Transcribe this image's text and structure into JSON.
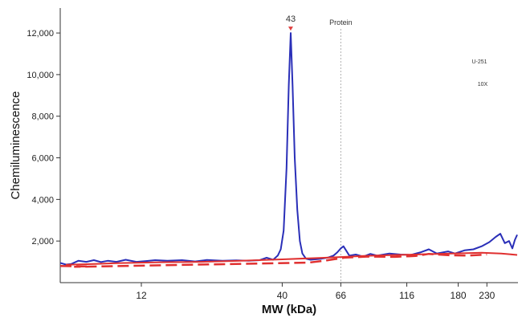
{
  "chart_data": {
    "type": "line",
    "xlabel": "MW (kDa)",
    "ylabel": "Chemiluminescence",
    "x_scale": "log",
    "x_ticks": [
      12,
      40,
      66,
      116,
      180,
      230
    ],
    "x_range": [
      6,
      300
    ],
    "y_ticks": [
      2000,
      4000,
      6000,
      8000,
      10000,
      12000
    ],
    "y_tick_labels": [
      "2,000",
      "4,000",
      "6,000",
      "8,000",
      "10,000",
      "12,000"
    ],
    "ylim": [
      0,
      13200
    ],
    "grid": false,
    "peak": {
      "label": "43",
      "x": 43,
      "y": 12000
    },
    "reference_line": {
      "label": "Protein",
      "x": 66
    },
    "annotations": [
      "U-251",
      "10X"
    ],
    "series": [
      {
        "color": "#2a2fb8",
        "style": "solid",
        "points": [
          [
            6.0,
            950
          ],
          [
            6.3,
            870
          ],
          [
            6.6,
            900
          ],
          [
            7.0,
            1050
          ],
          [
            7.5,
            1000
          ],
          [
            8.0,
            1080
          ],
          [
            8.5,
            990
          ],
          [
            9.0,
            1050
          ],
          [
            9.7,
            1000
          ],
          [
            10.5,
            1100
          ],
          [
            11.5,
            1000
          ],
          [
            12.5,
            1040
          ],
          [
            13.5,
            1080
          ],
          [
            15,
            1050
          ],
          [
            17,
            1080
          ],
          [
            19,
            1020
          ],
          [
            21,
            1090
          ],
          [
            24,
            1050
          ],
          [
            27,
            1070
          ],
          [
            30,
            1050
          ],
          [
            33,
            1080
          ],
          [
            35,
            1200
          ],
          [
            37,
            1100
          ],
          [
            38.5,
            1300
          ],
          [
            39.5,
            1600
          ],
          [
            40.5,
            2500
          ],
          [
            41.5,
            5500
          ],
          [
            42.3,
            9500
          ],
          [
            43,
            12000
          ],
          [
            43.7,
            9500
          ],
          [
            44.5,
            6000
          ],
          [
            45.5,
            3500
          ],
          [
            46.5,
            2000
          ],
          [
            47.5,
            1400
          ],
          [
            49,
            1150
          ],
          [
            51,
            1100
          ],
          [
            53,
            1120
          ],
          [
            56,
            1150
          ],
          [
            59,
            1200
          ],
          [
            62,
            1300
          ],
          [
            64,
            1450
          ],
          [
            66,
            1650
          ],
          [
            67.5,
            1750
          ],
          [
            69,
            1550
          ],
          [
            71,
            1300
          ],
          [
            75,
            1350
          ],
          [
            80,
            1250
          ],
          [
            85,
            1380
          ],
          [
            90,
            1300
          ],
          [
            100,
            1400
          ],
          [
            110,
            1350
          ],
          [
            120,
            1330
          ],
          [
            130,
            1450
          ],
          [
            140,
            1600
          ],
          [
            150,
            1400
          ],
          [
            165,
            1500
          ],
          [
            175,
            1400
          ],
          [
            190,
            1550
          ],
          [
            205,
            1600
          ],
          [
            220,
            1750
          ],
          [
            235,
            1950
          ],
          [
            248,
            2200
          ],
          [
            258,
            2350
          ],
          [
            268,
            1900
          ],
          [
            278,
            2000
          ],
          [
            286,
            1650
          ],
          [
            292,
            2050
          ],
          [
            298,
            2300
          ]
        ]
      },
      {
        "color": "#e03030",
        "style": "solid",
        "points": [
          [
            6.3,
            860
          ],
          [
            8,
            900
          ],
          [
            10,
            940
          ],
          [
            14,
            980
          ],
          [
            20,
            1000
          ],
          [
            28,
            1050
          ],
          [
            40,
            1120
          ],
          [
            55,
            1190
          ],
          [
            66,
            1230
          ],
          [
            80,
            1280
          ],
          [
            100,
            1320
          ],
          [
            130,
            1360
          ],
          [
            170,
            1400
          ],
          [
            220,
            1440
          ],
          [
            260,
            1400
          ],
          [
            298,
            1330
          ]
        ]
      },
      {
        "color": "#e03030",
        "style": "dashed",
        "points": [
          [
            6.0,
            800
          ],
          [
            7.5,
            780
          ],
          [
            6.8,
            760
          ],
          [
            50,
            960
          ],
          [
            58,
            1060
          ],
          [
            68,
            1200
          ],
          [
            82,
            1250
          ],
          [
            105,
            1240
          ],
          [
            125,
            1280
          ],
          [
            140,
            1380
          ],
          [
            165,
            1320
          ],
          [
            195,
            1300
          ],
          [
            230,
            1350
          ]
        ]
      }
    ]
  }
}
